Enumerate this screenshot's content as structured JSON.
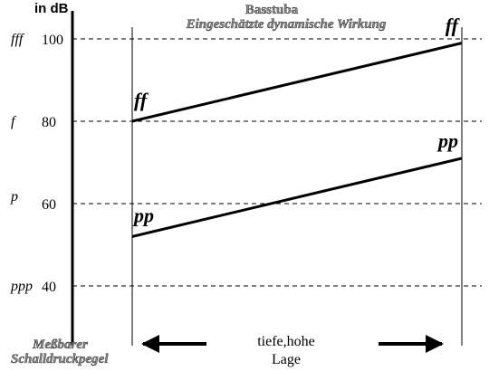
{
  "chart_data": {
    "type": "line",
    "title": "Basstuba",
    "subtitle": "Eingeschätzte dynamische Wirkung",
    "unit_label": "in dB",
    "ylabel_lines": [
      "Meßbarer",
      "Schalldruckpegel"
    ],
    "xlabel_lines": [
      "tiefe,hohe",
      "Lage"
    ],
    "x": [
      0,
      1
    ],
    "ylim": [
      35,
      103
    ],
    "ticks": [
      {
        "value": 100,
        "label": "100",
        "dynamic": "fff"
      },
      {
        "value": 80,
        "label": "80",
        "dynamic": "f"
      },
      {
        "value": 60,
        "label": "60",
        "dynamic": "p"
      },
      {
        "value": 40,
        "label": "40",
        "dynamic": "ppp"
      }
    ],
    "series": [
      {
        "name": "ff",
        "values": [
          80,
          99
        ],
        "start_label": "ff",
        "end_label": "ff"
      },
      {
        "name": "pp",
        "values": [
          52,
          71
        ],
        "start_label": "pp",
        "end_label": "pp"
      }
    ],
    "grid": true
  }
}
